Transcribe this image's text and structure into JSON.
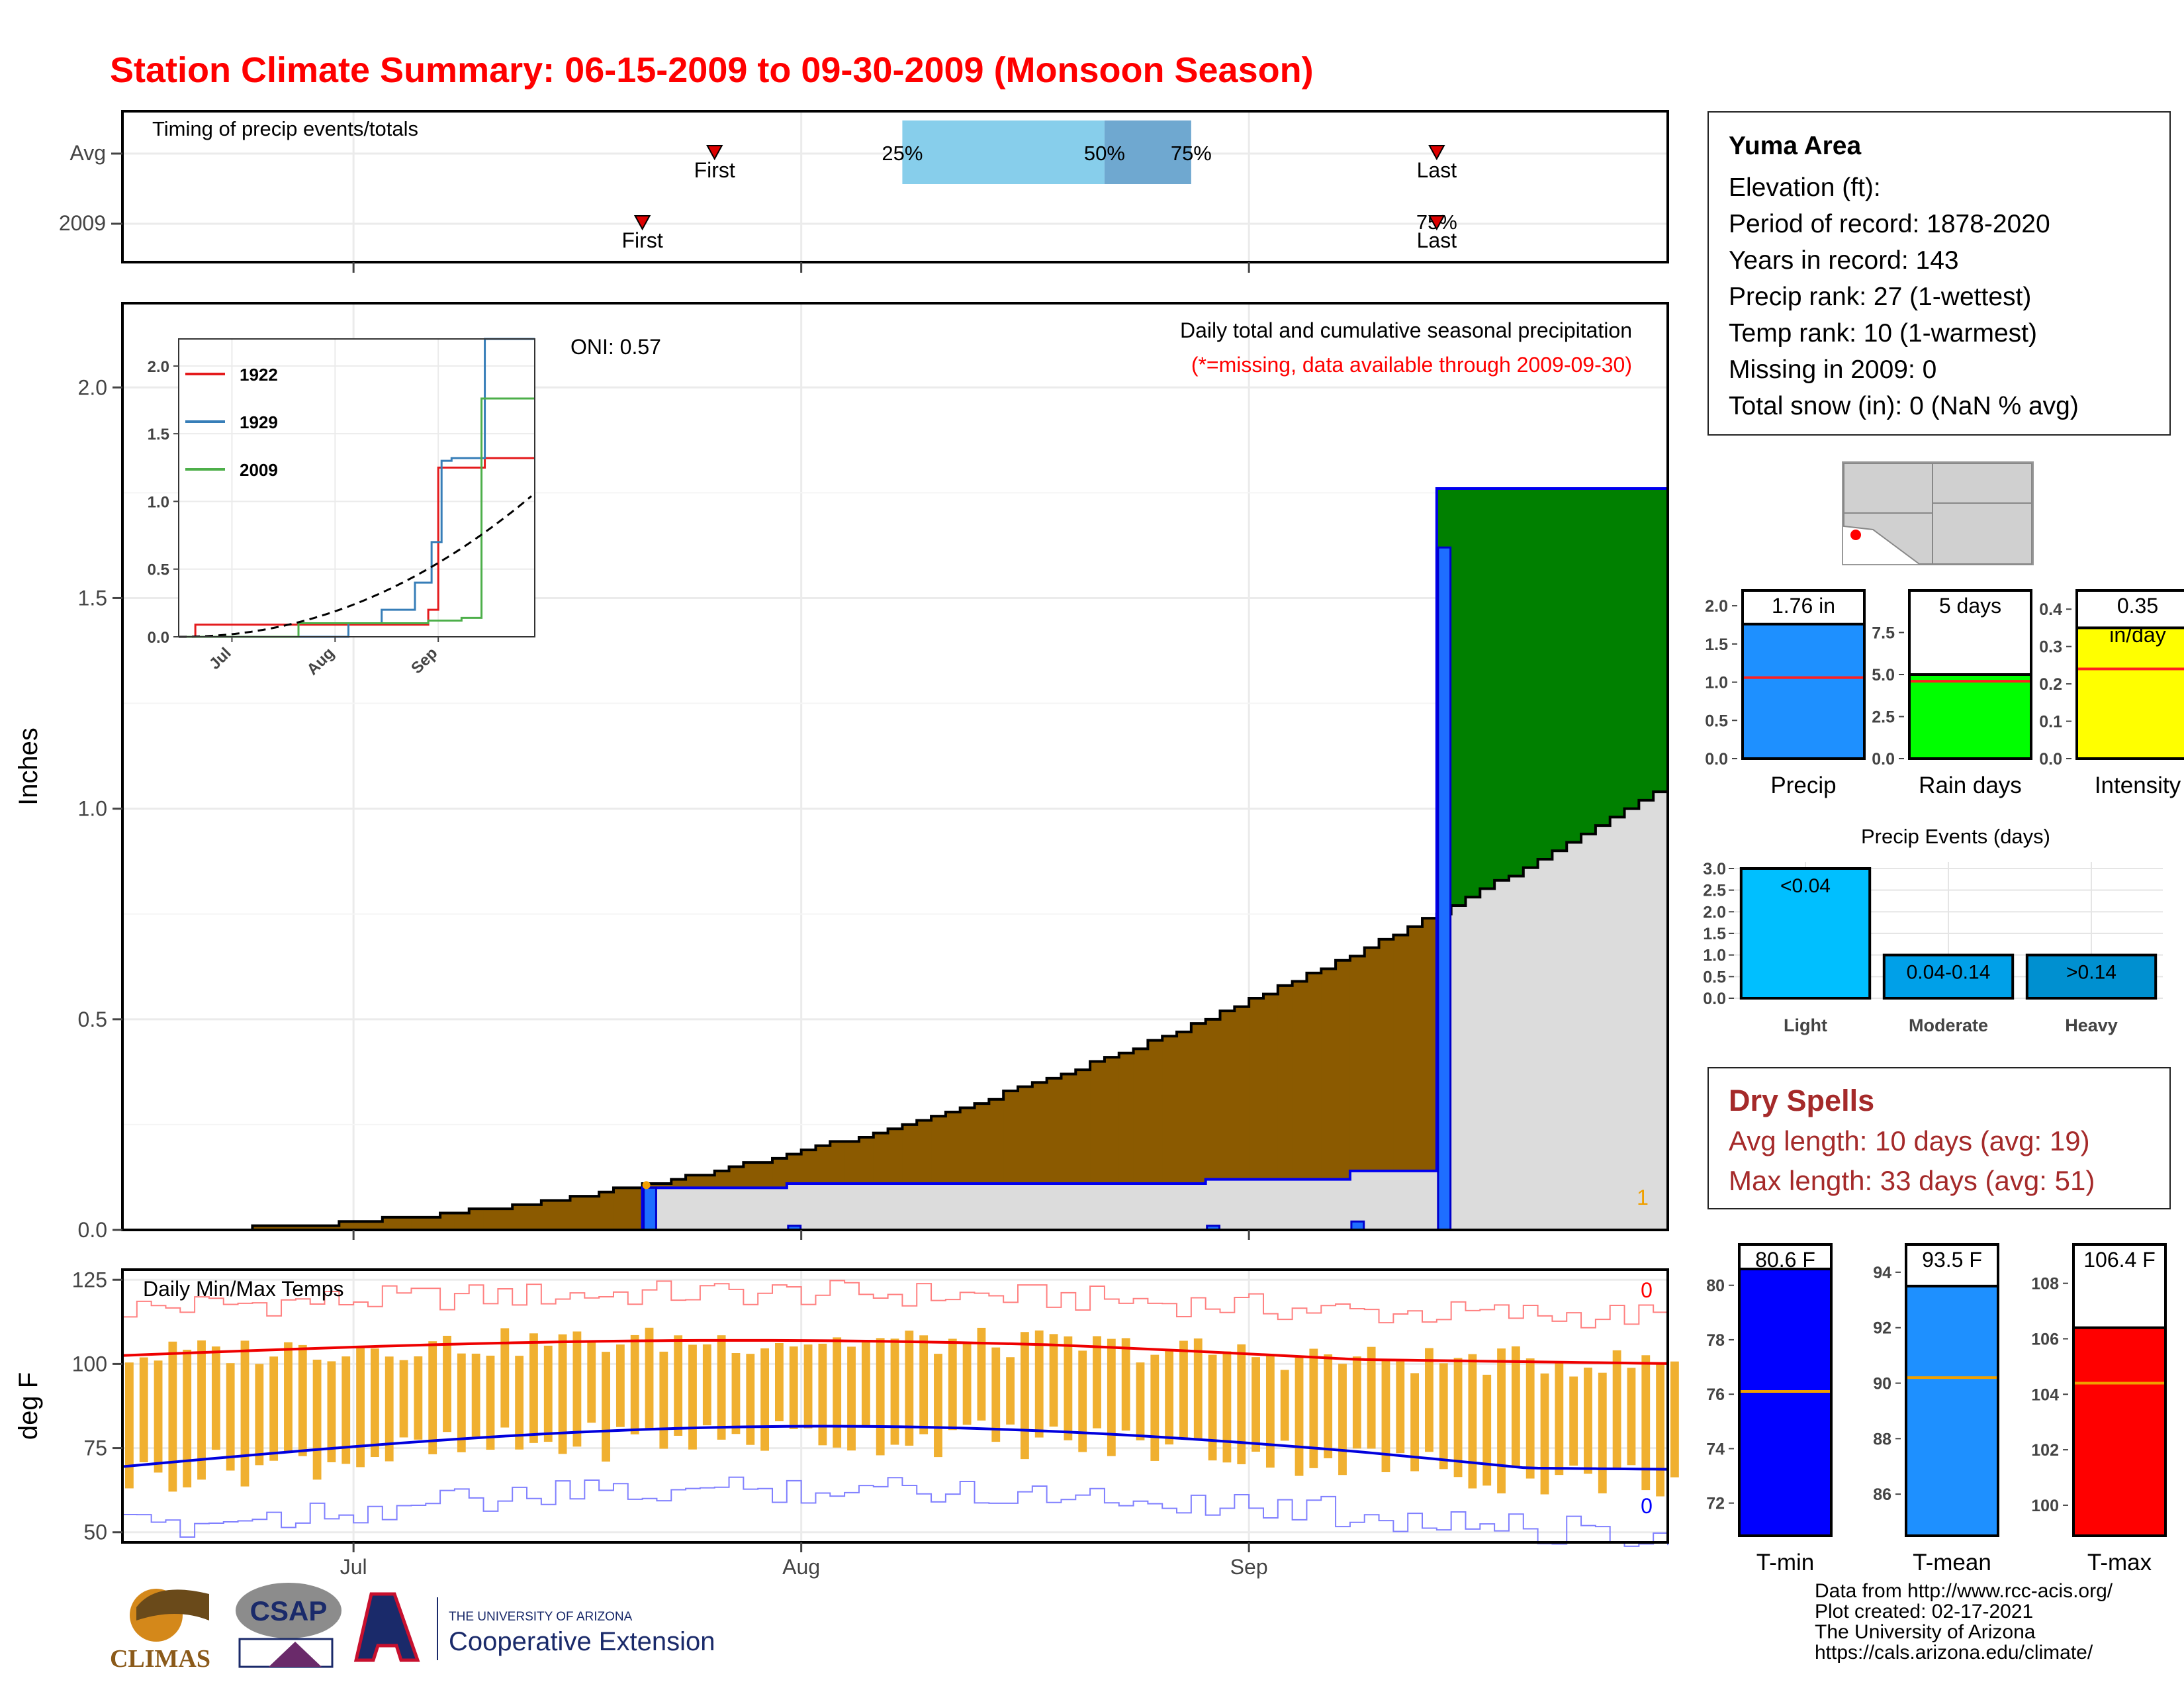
{
  "title": "Station Climate Summary: 06-15-2009 to 09-30-2009 (Monsoon Season)",
  "colors": {
    "title": "#ff0000",
    "cum2009": "#008000",
    "cumAvg": "#8b5a00",
    "daily": "#1e6eff",
    "dailyEdge": "#0000cc",
    "drySpell": "#a52a2a",
    "tempBar": "#f0b030"
  },
  "timing": {
    "title": "Timing of precip events/totals",
    "rows": [
      "Avg",
      "2009"
    ],
    "avg_first": "First",
    "avg_last": "Last",
    "y2009_first": "First",
    "y2009_last": "Last",
    "avg_pct_labels": [
      "25%",
      "50%",
      "75%"
    ],
    "y2009_overlap_label": "75%",
    "date_axis": {
      "start": "2009-06-15",
      "end": "2009-09-30"
    },
    "avg_first_date": "2009-07-26",
    "avg_last_date": "2009-09-14",
    "y2009_first_date": "2009-07-21",
    "y2009_last_date": "2009-09-14",
    "avg_pct_dates": [
      "2009-08-08",
      "2009-08-22",
      "2009-08-28"
    ]
  },
  "precip_panel": {
    "ylabel": "Inches",
    "oni": "ONI: 0.57",
    "subtitle": "Daily total and cumulative seasonal precipitation",
    "subtitle_red": "(*=missing, data available through 2009-09-30)",
    "count_label": "1",
    "yticks": [
      "0.0",
      "0.5",
      "1.0",
      "1.5",
      "2.0"
    ],
    "ylim": [
      0,
      2.2
    ],
    "xticks": [
      "Jul",
      "Aug",
      "Sep"
    ]
  },
  "inset": {
    "legend": [
      "1922",
      "1929",
      "2009"
    ],
    "yticks": [
      "0.0",
      "0.5",
      "1.0",
      "1.5",
      "2.0"
    ],
    "xticks": [
      "Jul",
      "Aug",
      "Sep"
    ],
    "ylim": [
      0,
      2.2
    ]
  },
  "temp_panel": {
    "title": "Daily Min/Max Temps",
    "ylabel": "deg F",
    "yticks": [
      "50",
      "75",
      "100",
      "125"
    ],
    "xticks": [
      "Jul",
      "Aug",
      "Sep"
    ],
    "max_count": "0",
    "min_count": "0",
    "ylim": [
      47,
      128
    ]
  },
  "station": {
    "name": "Yuma Area",
    "lines": [
      "Elevation (ft):",
      "Period of record: 1878-2020",
      "Years in record: 143",
      "Precip rank: 27 (1-wettest)",
      "Temp rank: 10 (1-warmest)",
      "Missing in 2009: 0",
      "Total snow (in): 0 (NaN % avg)"
    ]
  },
  "summary_bars": {
    "precip": {
      "label": "Precip",
      "value_label": "1.76 in",
      "value": 1.76,
      "avg": 1.06,
      "yticks": [
        "0.0",
        "0.5",
        "1.0",
        "1.5",
        "2.0"
      ],
      "max": 2.2
    },
    "raindays": {
      "label": "Rain days",
      "value_label": "5 days",
      "value": 5,
      "avg": 4.6,
      "yticks": [
        "0.0",
        "2.5",
        "5.0",
        "7.5"
      ],
      "max": 10
    },
    "intensity": {
      "label": "Intensity",
      "value_label": "0.35",
      "value_label2": "in/day",
      "value": 0.35,
      "avg": 0.24,
      "yticks": [
        "0.0",
        "0.1",
        "0.2",
        "0.3",
        "0.4"
      ],
      "max": 0.45
    }
  },
  "precip_events": {
    "title": "Precip Events (days)",
    "categories": [
      "Light",
      "Moderate",
      "Heavy"
    ],
    "bar_labels": [
      "<0.04",
      "0.04-0.14",
      ">0.14"
    ],
    "values": [
      3,
      1,
      1
    ],
    "yticks": [
      "0.0",
      "0.5",
      "1.0",
      "1.5",
      "2.0",
      "2.5",
      "3.0"
    ]
  },
  "dry_spells": {
    "title": "Dry Spells",
    "avg_length": "Avg length: 10 days (avg: 19)",
    "max_length": "Max length: 33 days (avg: 51)"
  },
  "temp_bars": {
    "tmin": {
      "label": "T-min",
      "value_label": "80.6 F",
      "value": 80.6,
      "avg": 76.1,
      "yticks": [
        "72",
        "74",
        "76",
        "78",
        "80"
      ],
      "min": 70.8,
      "max": 81.5
    },
    "tmean": {
      "label": "T-mean",
      "value_label": "93.5 F",
      "value": 93.5,
      "avg": 90.2,
      "yticks": [
        "86",
        "88",
        "90",
        "92",
        "94"
      ],
      "min": 84.5,
      "max": 95
    },
    "tmax": {
      "label": "T-max",
      "value_label": "106.4 F",
      "value": 106.4,
      "avg": 104.4,
      "yticks": [
        "100",
        "102",
        "104",
        "106",
        "108"
      ],
      "min": 98.9,
      "max": 109.4
    }
  },
  "logos": {
    "climas": "CLIMAS",
    "csap": "CSAP",
    "ua_small": "THE UNIVERSITY OF ARIZONA",
    "ua_big": "Cooperative Extension"
  },
  "footer": [
    "Data from http://www.rcc-acis.org/",
    "Plot created: 02-17-2021",
    "The University of Arizona",
    "https://cals.arizona.edu/climate/"
  ],
  "chart_data": {
    "type": "area",
    "title": "Station Climate Summary: 06-15-2009 to 09-30-2009 (Monsoon Season)",
    "ylabel": "Inches",
    "x_start": "2009-06-15",
    "x_end": "2009-09-30",
    "ylim": [
      0,
      2.2
    ],
    "daily_precip": [
      {
        "date": "2009-07-21",
        "in": 0.1
      },
      {
        "date": "2009-07-31",
        "in": 0.01
      },
      {
        "date": "2009-08-29",
        "in": 0.01
      },
      {
        "date": "2009-09-08",
        "in": 0.02
      },
      {
        "date": "2009-09-14",
        "in": 1.62
      }
    ],
    "cumulative_2009_end": 1.76,
    "cumulative_avg_end": 1.06,
    "series": [
      {
        "name": "1922",
        "color": "#e41a1c",
        "x": [
          "2009-06-15",
          "2009-06-20",
          "2009-08-12",
          "2009-08-29",
          "2009-09-01",
          "2009-09-15",
          "2009-09-30"
        ],
        "y": [
          0.0,
          0.09,
          0.09,
          0.2,
          1.25,
          1.32,
          1.32
        ]
      },
      {
        "name": "1929",
        "color": "#377eb8",
        "x": [
          "2009-06-15",
          "2009-07-25",
          "2009-08-05",
          "2009-08-15",
          "2009-08-25",
          "2009-08-30",
          "2009-09-02",
          "2009-09-05",
          "2009-09-15",
          "2009-09-30"
        ],
        "y": [
          0.0,
          0.0,
          0.1,
          0.2,
          0.4,
          0.7,
          1.3,
          1.32,
          2.2,
          2.2
        ]
      },
      {
        "name": "2009",
        "color": "#4daf4a",
        "x": [
          "2009-06-15",
          "2009-07-21",
          "2009-08-29",
          "2009-09-08",
          "2009-09-14",
          "2009-09-30"
        ],
        "y": [
          0.0,
          0.1,
          0.12,
          0.14,
          1.76,
          1.76
        ]
      }
    ]
  }
}
